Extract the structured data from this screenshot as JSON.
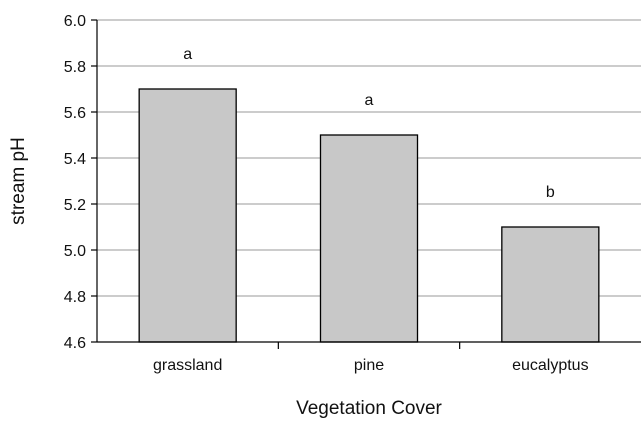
{
  "chart_data": {
    "type": "bar",
    "categories": [
      "grassland",
      "pine",
      "eucalyptus"
    ],
    "values": [
      5.7,
      5.5,
      5.1
    ],
    "data_labels": [
      "a",
      "a",
      "b"
    ],
    "xlabel": "Vegetation Cover",
    "ylabel": "stream pH",
    "ylim": [
      4.6,
      6.0
    ],
    "yticks": [
      "4.6",
      "4.8",
      "5.0",
      "5.2",
      "5.4",
      "5.6",
      "5.8",
      "6.0"
    ],
    "grid": "horizontal",
    "colors": {
      "bar_fill": "#c8c8c8",
      "bar_stroke": "#000000",
      "grid": "#9a9a9a",
      "axis": "#000000"
    }
  }
}
